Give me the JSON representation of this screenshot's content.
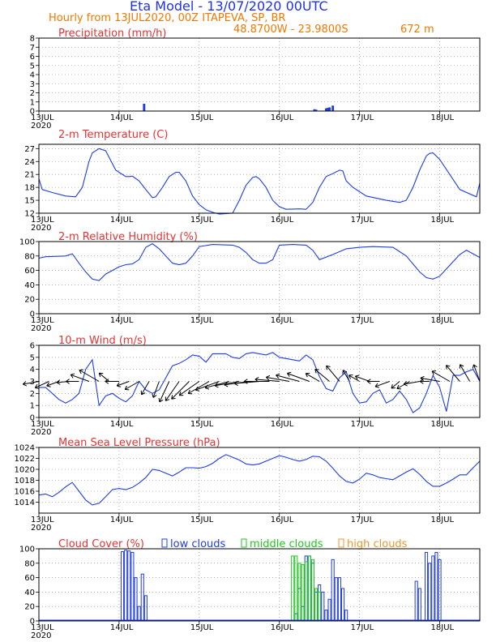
{
  "header": {
    "title": "Eta Model - 13/07/2020 00UTC",
    "subtitle": "Hourly from 13JUL2020, 00Z  ITAPEVA, SP, BR",
    "coordinates": "48.8700W - 23.9800S",
    "elevation": "672  m"
  },
  "colors": {
    "title": "#1e32e6",
    "header": "#f07800",
    "panel_title": "#e63232",
    "line": "#1e3ce6",
    "low_clouds": "#1e3ce6",
    "middle_clouds": "#1ec81e",
    "high_clouds": "#f09628",
    "wind_barb": "#000000",
    "grid": "#7f7f7f"
  },
  "x_axis": {
    "unit": "hours since 13JUL2020 00Z",
    "range": [
      0,
      132
    ],
    "ticks": [
      {
        "hour": 0,
        "label": "13JUL",
        "year": "2020"
      },
      {
        "hour": 24,
        "label": "14JUL"
      },
      {
        "hour": 48,
        "label": "15JUL"
      },
      {
        "hour": 72,
        "label": "16JUL"
      },
      {
        "hour": 96,
        "label": "17JUL"
      },
      {
        "hour": 120,
        "label": "18JUL"
      }
    ]
  },
  "chart_data": [
    {
      "id": "precip",
      "type": "bar",
      "title": "Precipitation (mm/h)",
      "ylim": [
        0,
        8
      ],
      "yticks": [
        0,
        1,
        2,
        3,
        4,
        5,
        6,
        7,
        8
      ],
      "x": [
        31.5,
        82.5,
        83,
        86,
        86.5,
        87,
        88
      ],
      "values": [
        0.8,
        0.2,
        0.15,
        0.3,
        0.35,
        0.4,
        0.6
      ]
    },
    {
      "id": "temp",
      "type": "line",
      "title": "2-m Temperature (C)",
      "ylim": [
        12,
        28
      ],
      "yticks": [
        12,
        15,
        18,
        21,
        24,
        27
      ],
      "x": [
        0,
        1,
        4,
        8,
        11,
        13,
        15,
        16,
        18,
        20,
        21,
        23,
        24,
        26,
        27,
        28,
        30,
        32,
        34,
        35,
        37,
        39,
        41,
        42,
        44,
        46,
        48,
        50,
        52,
        54,
        58,
        60,
        62,
        64,
        65,
        66,
        68,
        70,
        72,
        74,
        78,
        80,
        82,
        84,
        86,
        88,
        90,
        91,
        92,
        94,
        98,
        104,
        108,
        110,
        112,
        114,
        116,
        117,
        118,
        120,
        126,
        131,
        132
      ],
      "values": [
        20,
        17.5,
        16.8,
        16,
        15.8,
        18,
        24,
        26,
        27,
        26.5,
        25,
        22,
        21.5,
        20.5,
        20.5,
        20.6,
        19.5,
        17.5,
        15.6,
        15.8,
        18,
        20.5,
        21.5,
        21.5,
        19.5,
        16,
        14,
        12.8,
        12.2,
        11.8,
        12,
        15,
        18.5,
        20.3,
        20.5,
        20,
        18,
        15,
        13.5,
        12.9,
        13,
        12.9,
        14.5,
        18,
        20.5,
        21.2,
        22,
        21.8,
        19.5,
        18,
        16,
        15,
        14.5,
        15,
        18,
        22,
        25.3,
        25.9,
        26,
        24.5,
        17.5,
        15.8,
        19
      ]
    },
    {
      "id": "rh",
      "type": "line",
      "title": "2-m Relative Humidity (%)",
      "ylim": [
        0,
        100
      ],
      "yticks": [
        0,
        20,
        40,
        60,
        80,
        100
      ],
      "x": [
        0,
        2,
        8,
        10,
        12,
        14,
        16,
        18,
        20,
        22,
        24,
        26,
        28,
        30,
        32,
        34,
        36,
        40,
        42,
        44,
        46,
        48,
        52,
        58,
        60,
        62,
        64,
        66,
        68,
        70,
        72,
        76,
        80,
        82,
        84,
        88,
        92,
        96,
        100,
        106,
        110,
        114,
        116,
        118,
        120,
        122,
        124,
        126,
        128,
        132
      ],
      "values": [
        77,
        79,
        80,
        83,
        70,
        58,
        48,
        46,
        55,
        60,
        65,
        68,
        69,
        75,
        92,
        97,
        90,
        70,
        68,
        70,
        80,
        93,
        96,
        95,
        92,
        85,
        75,
        70,
        70,
        75,
        95,
        96,
        95,
        88,
        75,
        82,
        90,
        92,
        93,
        92,
        80,
        58,
        50,
        48,
        52,
        62,
        72,
        82,
        88,
        78
      ]
    },
    {
      "id": "wind",
      "type": "line",
      "title": "10-m Wind (m/s)",
      "ylim": [
        0,
        6
      ],
      "yticks": [
        0,
        1,
        2,
        3,
        4,
        5,
        6
      ],
      "x": [
        0,
        2,
        4,
        6,
        8,
        10,
        12,
        14,
        16,
        18,
        20,
        22,
        24,
        26,
        28,
        30,
        32,
        34,
        36,
        40,
        42,
        44,
        46,
        48,
        50,
        52,
        56,
        58,
        60,
        62,
        64,
        66,
        68,
        70,
        72,
        74,
        76,
        78,
        80,
        82,
        84,
        86,
        88,
        90,
        92,
        94,
        96,
        98,
        100,
        102,
        104,
        106,
        108,
        110,
        112,
        114,
        116,
        118,
        120,
        122,
        124,
        126,
        128,
        130,
        132
      ],
      "values": [
        2.5,
        2.5,
        2,
        1.5,
        1.2,
        1.5,
        2,
        4,
        4.8,
        1,
        1.8,
        2,
        1.6,
        1.3,
        1.8,
        3,
        2.3,
        2,
        2.3,
        4.3,
        4.5,
        4.8,
        5.2,
        5.1,
        4.6,
        5.3,
        5.3,
        5,
        4.9,
        5.3,
        5.4,
        5.3,
        5.2,
        5.4,
        5,
        4.9,
        4.8,
        4.7,
        5.2,
        4.8,
        3.4,
        2.4,
        2.2,
        3.3,
        3.8,
        2,
        1.2,
        1.3,
        2,
        2.3,
        1.2,
        1.5,
        2.2,
        1.5,
        0.4,
        0.8,
        2,
        3.5,
        2.5,
        0.5,
        3.5,
        3.5,
        3.8,
        4,
        3
      ]
    },
    {
      "id": "mslp",
      "type": "line",
      "title": "Mean Sea Level Pressure (hPa)",
      "ylim": [
        1012,
        1024
      ],
      "yticks": [
        1014,
        1016,
        1018,
        1020,
        1022,
        1024
      ],
      "x": [
        0,
        2,
        4,
        6,
        8,
        10,
        12,
        14,
        16,
        18,
        20,
        22,
        24,
        26,
        28,
        30,
        32,
        34,
        36,
        38,
        40,
        42,
        44,
        46,
        48,
        50,
        52,
        54,
        56,
        58,
        60,
        62,
        64,
        66,
        68,
        70,
        72,
        74,
        76,
        78,
        80,
        82,
        84,
        86,
        88,
        90,
        92,
        94,
        96,
        98,
        100,
        102,
        104,
        106,
        108,
        110,
        112,
        114,
        116,
        118,
        120,
        122,
        124,
        126,
        128,
        130,
        132
      ],
      "values": [
        1015.3,
        1015.5,
        1015,
        1015.8,
        1016.8,
        1017.6,
        1016,
        1014.4,
        1013.5,
        1013.8,
        1015,
        1016.3,
        1016.5,
        1016.3,
        1016.7,
        1017.5,
        1018.5,
        1020,
        1019.8,
        1019.3,
        1018.8,
        1019.5,
        1020.3,
        1020.3,
        1020.2,
        1020.5,
        1021.1,
        1022,
        1022.7,
        1022.2,
        1021.7,
        1021,
        1020.8,
        1021,
        1021.5,
        1022,
        1022.5,
        1022.2,
        1021.8,
        1021.5,
        1021.8,
        1022.4,
        1022.3,
        1021.5,
        1020.2,
        1018.8,
        1017.8,
        1017.5,
        1018.2,
        1019.3,
        1019,
        1018.5,
        1018.3,
        1018.1,
        1018.8,
        1019.5,
        1020.1,
        1019.1,
        1017.8,
        1016.9,
        1016.9,
        1017.5,
        1018.2,
        1019,
        1019,
        1020.3,
        1021.5
      ]
    },
    {
      "id": "clouds",
      "type": "bar",
      "title": "Cloud Cover (%)",
      "legend": [
        "low clouds",
        "middle clouds",
        "high clouds"
      ],
      "ylim": [
        0,
        100
      ],
      "yticks": [
        0,
        20,
        40,
        60,
        80,
        100
      ],
      "series": [
        {
          "name": "low clouds",
          "x": [
            25,
            26,
            27,
            28,
            29,
            30,
            31,
            32,
            77,
            78,
            79,
            80,
            81,
            82,
            83,
            84,
            85,
            86,
            87,
            88,
            89,
            90,
            91,
            92,
            93,
            94,
            95,
            96,
            97,
            98,
            99,
            100,
            101,
            102,
            103,
            104,
            105,
            106,
            107,
            108,
            109,
            110,
            111,
            112,
            113,
            114,
            115,
            116,
            117,
            118,
            119,
            120
          ],
          "values": [
            96,
            98,
            97,
            95,
            60,
            20,
            65,
            35,
            10,
            45,
            20,
            90,
            90,
            80,
            40,
            50,
            40,
            15,
            30,
            85,
            60,
            60,
            45,
            15,
            0,
            0,
            0,
            0,
            0,
            0,
            0,
            0,
            0,
            0,
            0,
            0,
            0,
            0,
            0,
            0,
            0,
            0,
            0,
            0,
            55,
            45,
            0,
            95,
            80,
            90,
            95,
            85
          ]
        },
        {
          "name": "middle clouds",
          "x": [
            76,
            77,
            78,
            79,
            80,
            81,
            82,
            83,
            84
          ],
          "values": [
            90,
            90,
            80,
            78,
            82,
            90,
            85,
            45,
            40
          ]
        },
        {
          "name": "high clouds",
          "x": [],
          "values": []
        }
      ]
    }
  ],
  "wind_barbs": {
    "x": [
      0,
      3,
      6,
      9,
      12,
      15,
      18,
      21,
      24,
      27,
      30,
      33,
      36,
      39,
      42,
      45,
      48,
      51,
      54,
      57,
      60,
      63,
      66,
      69,
      72,
      75,
      78,
      81,
      84,
      87,
      90,
      93,
      96,
      99,
      102,
      105,
      108,
      111,
      114,
      117,
      120,
      123,
      126,
      129,
      132
    ],
    "direction_deg": [
      260,
      245,
      250,
      265,
      270,
      290,
      300,
      310,
      270,
      250,
      240,
      210,
      200,
      205,
      215,
      225,
      235,
      240,
      250,
      255,
      260,
      262,
      265,
      270,
      275,
      280,
      285,
      290,
      300,
      310,
      320,
      330,
      300,
      290,
      270,
      250,
      230,
      240,
      260,
      270,
      280,
      300,
      320,
      330,
      340
    ],
    "speed_ms": [
      2.5,
      2.2,
      1.5,
      1.3,
      1.5,
      3.5,
      4.5,
      1.5,
      1.8,
      1.5,
      2.5,
      2.2,
      2.8,
      4.5,
      4.8,
      5.2,
      5,
      5,
      5.3,
      5.2,
      5.2,
      5.3,
      5.2,
      5.3,
      5,
      4.8,
      5,
      4.8,
      2.4,
      3.3,
      3.8,
      1.5,
      1.3,
      2.2,
      1.3,
      2.2,
      0.8,
      2,
      2.5,
      0.5,
      3.5,
      3.8,
      4,
      3.5,
      3
    ]
  }
}
